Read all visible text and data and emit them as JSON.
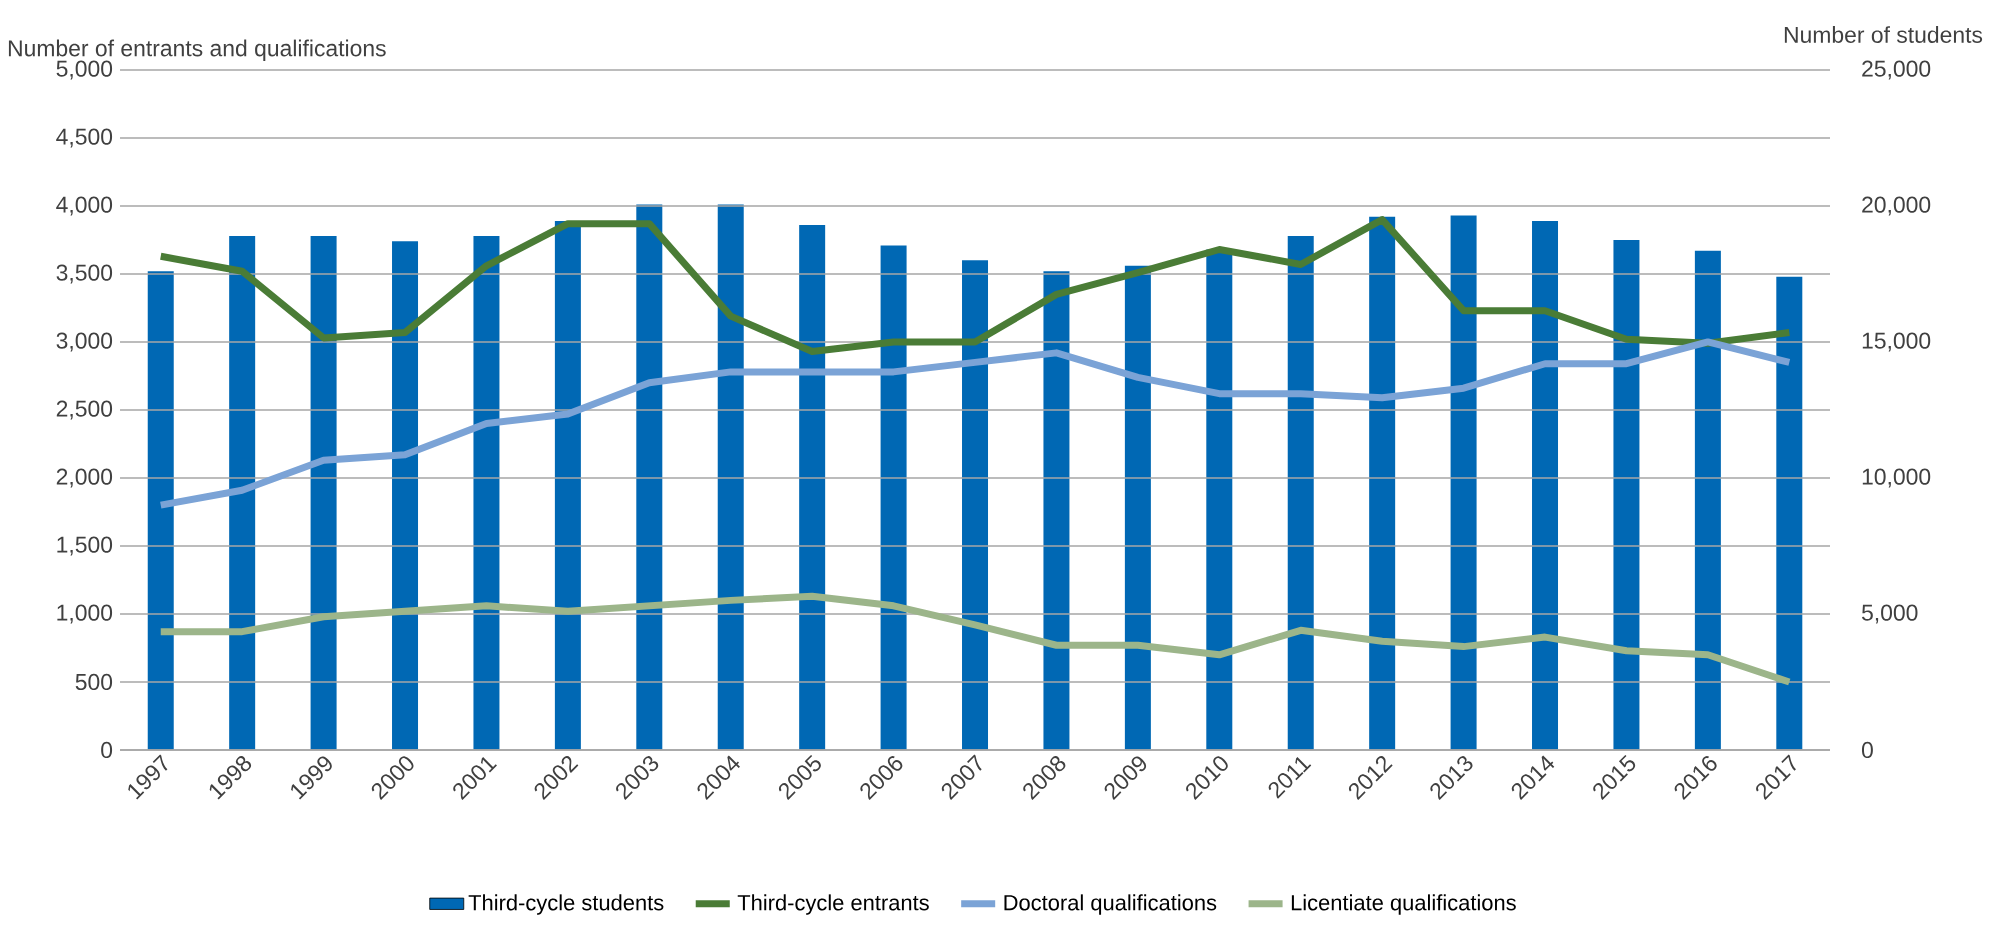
{
  "chart_data": {
    "type": "line",
    "ylabel": "Number of entrants and qualifications",
    "y2label": "Number of students",
    "categories": [
      "1997",
      "1998",
      "1999",
      "2000",
      "2001",
      "2002",
      "2003",
      "2004",
      "2005",
      "2006",
      "2007",
      "2008",
      "2009",
      "2010",
      "2011",
      "2012",
      "2013",
      "2014",
      "2015",
      "2016",
      "2017"
    ],
    "series": [
      {
        "name": "Third-cycle students",
        "type": "bar",
        "axis": "y2",
        "color": "#0068b4",
        "values": [
          17600,
          18900,
          18900,
          18700,
          18900,
          19450,
          20050,
          20050,
          19300,
          18550,
          18000,
          17600,
          17800,
          18400,
          18900,
          19600,
          19650,
          19450,
          18750,
          18350,
          17400
        ]
      },
      {
        "name": "Third-cycle entrants",
        "color": "#4a7c36",
        "values": [
          3630,
          3520,
          3030,
          3070,
          3560,
          3870,
          3870,
          3190,
          2930,
          3000,
          3000,
          3350,
          3510,
          3680,
          3570,
          3900,
          3230,
          3230,
          3020,
          2990,
          3070
        ]
      },
      {
        "name": "Doctoral qualifications",
        "color": "#7ba3d6",
        "values": [
          1800,
          1910,
          2130,
          2170,
          2400,
          2470,
          2700,
          2780,
          2780,
          2780,
          2850,
          2920,
          2740,
          2620,
          2620,
          2590,
          2660,
          2840,
          2840,
          3000,
          2850
        ]
      },
      {
        "name": "Licentiate qualifications",
        "color": "#9cb58a",
        "values": [
          870,
          870,
          980,
          1020,
          1060,
          1020,
          1060,
          1100,
          1130,
          1060,
          920,
          770,
          770,
          700,
          880,
          800,
          760,
          830,
          730,
          700,
          500
        ]
      }
    ],
    "ylim": [
      0,
      5000
    ],
    "yticks": [
      0,
      500,
      {
        "value": 1000,
        "label": "1,000"
      },
      {
        "value": 1500,
        "label": "1,500"
      },
      {
        "value": 2000,
        "label": "2,000"
      },
      {
        "value": 2500,
        "label": "2,500"
      },
      {
        "value": 3000,
        "label": "3,000"
      },
      {
        "value": 3500,
        "label": "3,500"
      },
      {
        "value": 4000,
        "label": "4,000"
      },
      {
        "value": 4500,
        "label": "4,500"
      },
      {
        "value": 5000,
        "label": "5,000"
      }
    ],
    "y2lim": [
      0,
      25000
    ],
    "y2ticks": [
      0,
      {
        "value": 5000,
        "label": "5,000"
      },
      {
        "value": 10000,
        "label": "10,000"
      },
      {
        "value": 15000,
        "label": "15,000"
      },
      {
        "value": 20000,
        "label": "20,000"
      },
      {
        "value": 25000,
        "label": "25,000"
      }
    ],
    "grid": "y",
    "legend": "bottom",
    "marker": "none",
    "line_style": "solid"
  }
}
